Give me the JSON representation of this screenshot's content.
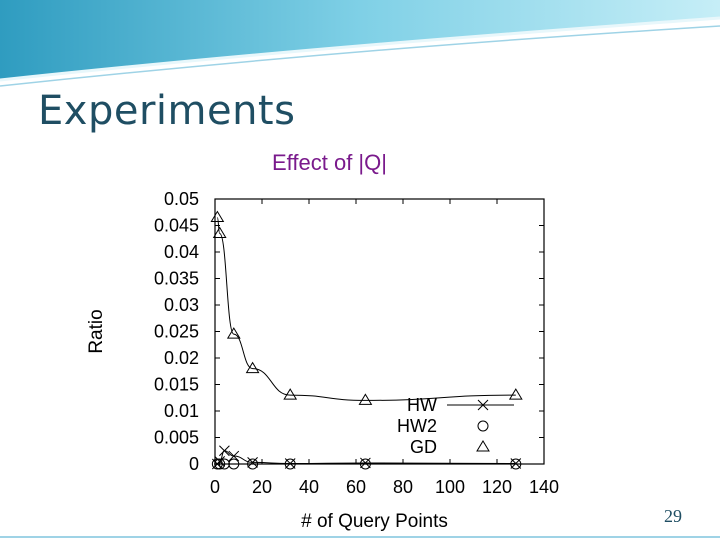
{
  "slide": {
    "title": "Experiments",
    "page_number": "29",
    "colors": {
      "title": "#1f4e63",
      "subtitle": "#7a1a8c",
      "header_teal": "#3aa9c9"
    }
  },
  "chart_data": {
    "type": "line",
    "title": "Effect of |Q|",
    "xlabel": "# of Query Points",
    "ylabel": "Ratio",
    "xlim": [
      0,
      140
    ],
    "ylim": [
      0,
      0.05
    ],
    "xticks": [
      "0",
      "20",
      "40",
      "60",
      "80",
      "100",
      "120",
      "140"
    ],
    "yticks": [
      "0",
      "0.005",
      "0.01",
      "0.015",
      "0.02",
      "0.025",
      "0.03",
      "0.035",
      "0.04",
      "0.045",
      "0.05"
    ],
    "legend_position": "bottom-right",
    "series": [
      {
        "name": "HW",
        "marker": "x",
        "x": [
          1,
          2,
          4,
          8,
          16,
          32,
          64,
          128
        ],
        "y": [
          0,
          0.0005,
          0.0025,
          0.0015,
          0.0003,
          0.0001,
          0.0002,
          0.0001
        ]
      },
      {
        "name": "HW2",
        "marker": "circle",
        "x": [
          1,
          2,
          4,
          8,
          16,
          32,
          64,
          128
        ],
        "y": [
          0,
          0,
          0,
          0,
          0,
          0,
          0,
          0
        ]
      },
      {
        "name": "GD",
        "marker": "triangle",
        "x": [
          1,
          2,
          8,
          16,
          32,
          64,
          128
        ],
        "y": [
          0.0465,
          0.0435,
          0.0245,
          0.018,
          0.013,
          0.012,
          0.013
        ]
      }
    ]
  }
}
